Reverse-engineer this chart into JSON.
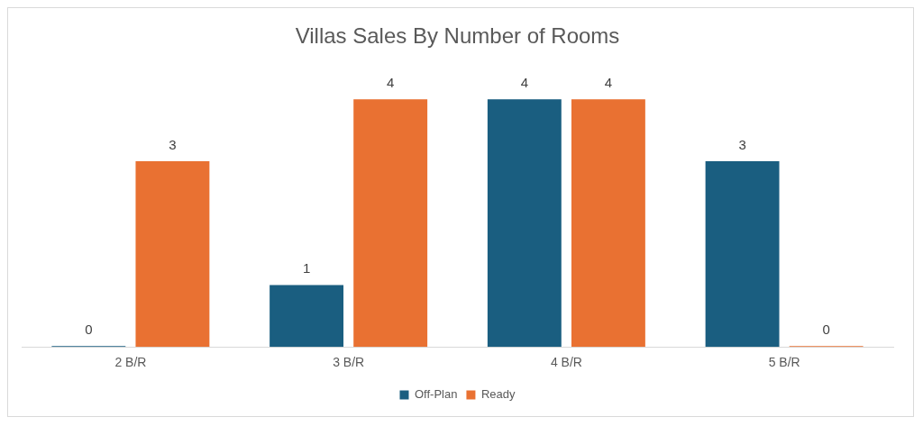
{
  "chart_data": {
    "type": "bar",
    "title": "Villas Sales By Number of Rooms",
    "categories": [
      "2 B/R",
      "3 B/R",
      "4 B/R",
      "5 B/R"
    ],
    "series": [
      {
        "name": "Off-Plan",
        "color": "#1a5e80",
        "values": [
          0,
          1,
          4,
          3
        ]
      },
      {
        "name": "Ready",
        "color": "#e97132",
        "values": [
          3,
          4,
          4,
          0
        ]
      }
    ],
    "data_labels": true,
    "legend": "bottom",
    "grid": false
  }
}
